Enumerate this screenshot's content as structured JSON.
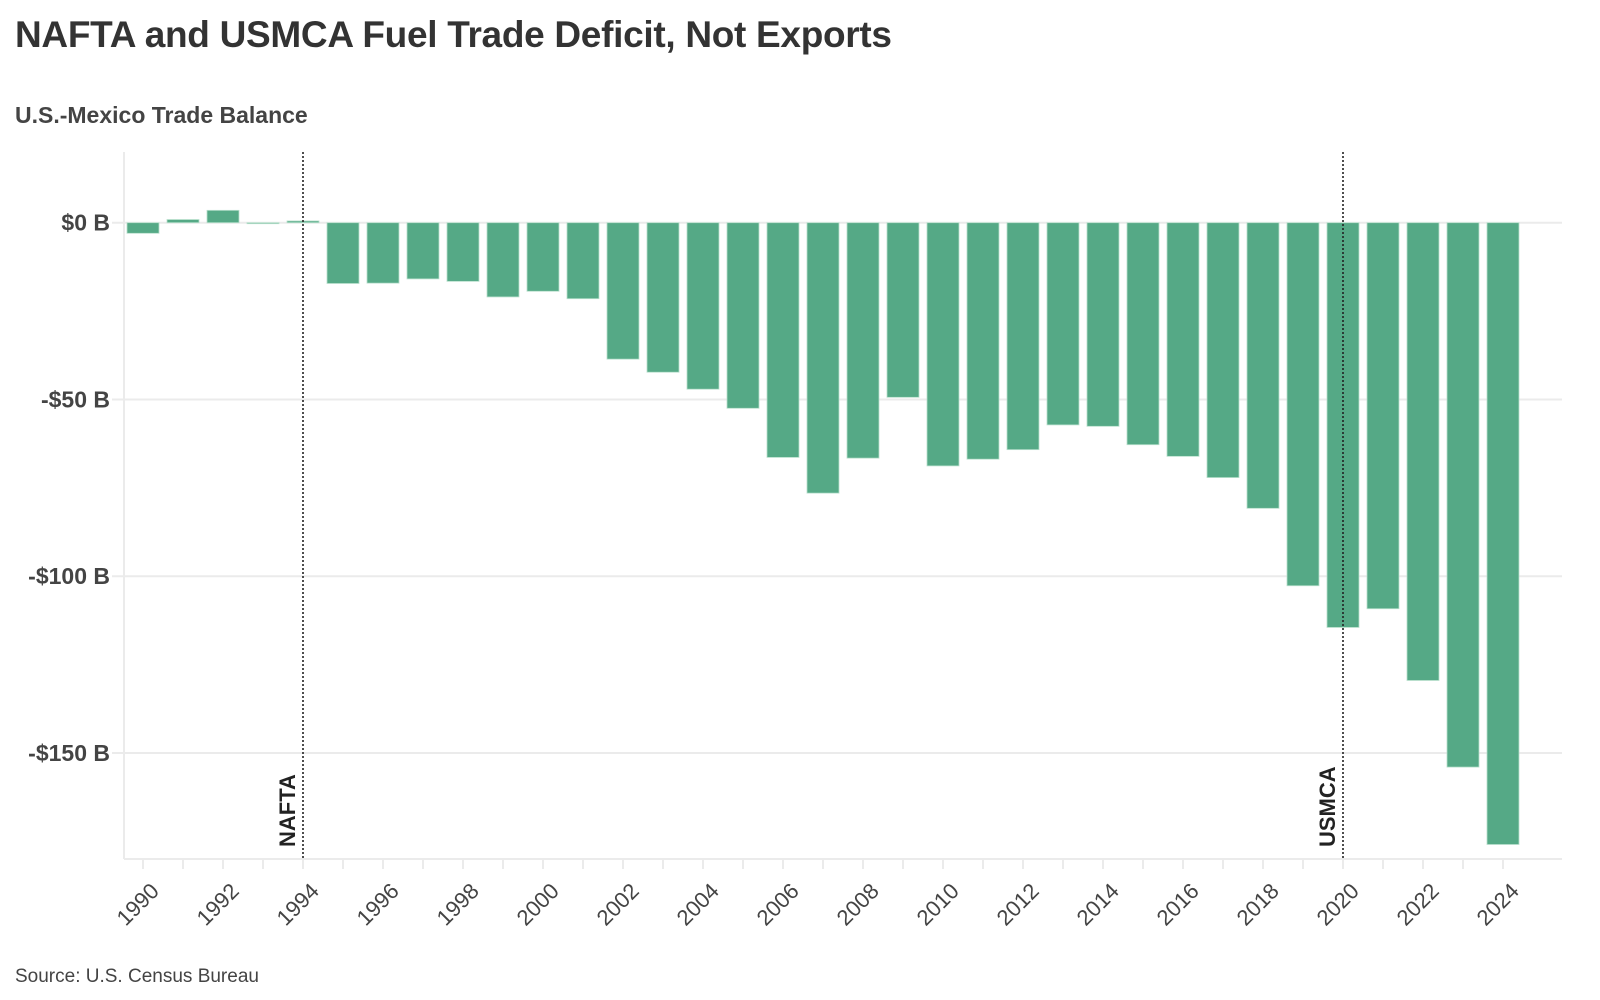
{
  "header": {
    "title": "NAFTA and USMCA Fuel Trade Deficit, Not Exports",
    "subtitle": "U.S.-Mexico Trade Balance"
  },
  "footer": {
    "source": "Source: U.S. Census Bureau"
  },
  "chart_data": {
    "type": "bar",
    "title": "NAFTA and USMCA Fuel Trade Deficit, Not Exports",
    "subtitle": "U.S.-Mexico Trade Balance",
    "xlabel": "",
    "ylabel": "",
    "unit": "billion USD",
    "ylim": [
      -180,
      20
    ],
    "grid": true,
    "bar_color": "#52A784",
    "categories": [
      "1990",
      "1991",
      "1992",
      "1993",
      "1994",
      "1995",
      "1996",
      "1997",
      "1998",
      "1999",
      "2000",
      "2001",
      "2002",
      "2003",
      "2004",
      "2005",
      "2006",
      "2007",
      "2008",
      "2009",
      "2010",
      "2011",
      "2012",
      "2013",
      "2014",
      "2015",
      "2016",
      "2017",
      "2018",
      "2019",
      "2020",
      "2021",
      "2022",
      "2023",
      "2024"
    ],
    "values": [
      -3.0,
      0.9,
      3.5,
      -0.2,
      0.5,
      -17.2,
      -17.1,
      -15.9,
      -16.6,
      -21.0,
      -19.4,
      -21.5,
      -38.6,
      -42.3,
      -47.1,
      -52.5,
      -66.4,
      -76.5,
      -66.6,
      -49.4,
      -68.8,
      -66.9,
      -64.2,
      -57.2,
      -57.6,
      -62.8,
      -66.1,
      -72.1,
      -80.8,
      -102.7,
      -114.5,
      -109.2,
      -129.5,
      -154.0,
      -175.9
    ],
    "yticks": [
      {
        "value": 0,
        "label": "$0 B"
      },
      {
        "value": -50,
        "label": "-$50 B"
      },
      {
        "value": -100,
        "label": "-$100 B"
      },
      {
        "value": -150,
        "label": "-$150 B"
      }
    ],
    "xticks": [
      "1990",
      "1992",
      "1994",
      "1996",
      "1998",
      "2000",
      "2002",
      "2004",
      "2006",
      "2008",
      "2010",
      "2012",
      "2014",
      "2016",
      "2018",
      "2020",
      "2022",
      "2024"
    ],
    "annotations": [
      {
        "x": "1994",
        "label": "NAFTA",
        "style": "dotted-vertical-line"
      },
      {
        "x": "2020",
        "label": "USMCA",
        "style": "dotted-vertical-line"
      }
    ]
  }
}
